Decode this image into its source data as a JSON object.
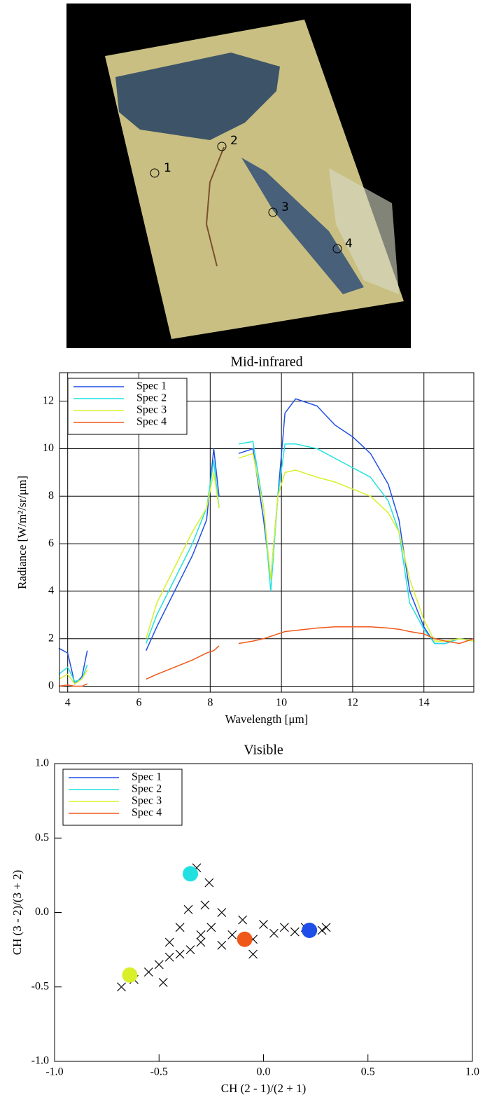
{
  "image": {
    "markers": [
      "1",
      "2",
      "3",
      "4"
    ]
  },
  "chart_data": [
    {
      "type": "line",
      "title": "Mid-infrared",
      "xlabel": "Wavelength [μm]",
      "ylabel": "Radiance [W/m²/sr/μm]",
      "x": [
        3.75,
        4,
        4.2,
        4.4,
        4.55,
        5.4,
        6.2,
        6.5,
        7,
        7.5,
        7.9,
        8.1,
        8.25,
        8.5,
        8.8,
        9.2,
        9.5,
        9.7,
        9.9,
        10.1,
        10.4,
        11,
        11.5,
        12,
        12.5,
        13,
        13.3,
        13.6,
        14,
        14.3,
        14.6,
        15,
        15.4
      ],
      "series": [
        {
          "name": "Spec 1",
          "color": "#1f4fe6",
          "values": [
            1.6,
            1.4,
            0.1,
            0.4,
            1.5,
            null,
            1.5,
            2.5,
            4,
            5.5,
            7,
            10,
            8,
            null,
            9.8,
            10,
            7,
            4.5,
            8,
            11.5,
            12.1,
            11.8,
            11,
            10.5,
            9.8,
            8.5,
            7,
            4,
            2.5,
            1.8,
            1.8,
            2,
            1.9
          ]
        },
        {
          "name": "Spec 2",
          "color": "#22e0e0",
          "values": [
            0.5,
            0.8,
            0.2,
            0.3,
            0.9,
            null,
            1.8,
            3,
            4.5,
            6,
            7.5,
            9.5,
            7.5,
            null,
            10.2,
            10.3,
            7.5,
            4,
            8,
            10.2,
            10.2,
            10,
            9.6,
            9.2,
            8.8,
            7.8,
            6.5,
            3.5,
            2.4,
            1.8,
            1.8,
            2,
            1.9
          ]
        },
        {
          "name": "Spec 3",
          "color": "#d8f02a",
          "values": [
            0.3,
            0.5,
            0.1,
            0.3,
            0.7,
            null,
            2,
            3.5,
            5,
            6.5,
            7.5,
            9,
            7.5,
            null,
            9.6,
            9.8,
            7.5,
            4.5,
            8,
            9,
            9.1,
            8.8,
            8.6,
            8.3,
            8,
            7.3,
            6.5,
            4.5,
            2.8,
            1.9,
            1.9,
            2,
            1.9
          ]
        },
        {
          "name": "Spec 4",
          "color": "#f0581a",
          "values": [
            0,
            0.05,
            0,
            0,
            0.1,
            null,
            0.3,
            0.5,
            0.8,
            1.1,
            1.4,
            1.5,
            1.7,
            null,
            1.8,
            1.9,
            2,
            2.1,
            2.2,
            2.3,
            2.35,
            2.45,
            2.5,
            2.5,
            2.5,
            2.45,
            2.4,
            2.3,
            2.2,
            2,
            1.9,
            1.8,
            2
          ]
        }
      ],
      "xlim": [
        3.77,
        15.4
      ],
      "ylim": [
        -0.25,
        13.2
      ],
      "xticks": [
        4,
        6,
        8,
        10,
        12,
        14
      ],
      "yticks": [
        0,
        2,
        4,
        6,
        8,
        10,
        12
      ],
      "grid": true,
      "legend": "upper left"
    },
    {
      "type": "scatter",
      "title": "Visible",
      "xlabel": "CH (2 - 1)/(2 + 1)",
      "ylabel": "CH (3 - 2)/(3 + 2)",
      "series": [
        {
          "color": "#000000",
          "marker": "x",
          "x": [
            -0.68,
            -0.62,
            -0.55,
            -0.5,
            -0.45,
            -0.4,
            -0.35,
            -0.3,
            -0.28,
            -0.26,
            -0.32,
            -0.36,
            -0.4,
            -0.2,
            -0.1,
            0,
            0.1,
            0.2,
            0.28,
            0.3,
            -0.15,
            -0.05,
            0.05,
            0.15,
            -0.25,
            -0.45,
            -0.3,
            -0.48,
            -0.2,
            -0.05
          ],
          "y": [
            -0.5,
            -0.45,
            -0.4,
            -0.35,
            -0.3,
            -0.28,
            -0.25,
            -0.2,
            0.05,
            0.2,
            0.3,
            0.02,
            -0.1,
            0,
            -0.05,
            -0.08,
            -0.1,
            -0.1,
            -0.12,
            -0.1,
            -0.15,
            -0.18,
            -0.14,
            -0.13,
            -0.1,
            -0.2,
            -0.15,
            -0.47,
            -0.22,
            -0.28
          ]
        },
        {
          "name": "Spec 1",
          "color": "#1f4fe6",
          "x": [
            0.22
          ],
          "y": [
            -0.12
          ]
        },
        {
          "name": "Spec 2",
          "color": "#22e0e0",
          "x": [
            -0.35
          ],
          "y": [
            0.26
          ]
        },
        {
          "name": "Spec 3",
          "color": "#d8f02a",
          "x": [
            -0.64
          ],
          "y": [
            -0.42
          ]
        },
        {
          "name": "Spec 4",
          "color": "#f0581a",
          "x": [
            -0.09
          ],
          "y": [
            -0.18
          ]
        }
      ],
      "xlim": [
        -1,
        1
      ],
      "ylim": [
        -1,
        1
      ],
      "xticks": [
        {
          "value": -1,
          "label": "-1.0"
        },
        {
          "value": -0.5,
          "label": "-0.5"
        },
        {
          "value": 0,
          "label": "0.0"
        },
        {
          "value": 0.5,
          "label": "0.5"
        },
        {
          "value": 1,
          "label": "1.0"
        }
      ],
      "yticks": [
        {
          "value": -1,
          "label": "-1.0"
        },
        {
          "value": -0.5,
          "label": "-0.5"
        },
        {
          "value": 0,
          "label": "0.0"
        },
        {
          "value": 0.5,
          "label": "0.5"
        },
        {
          "value": 1,
          "label": "1.0"
        }
      ],
      "grid": false,
      "legend": "upper left"
    }
  ]
}
